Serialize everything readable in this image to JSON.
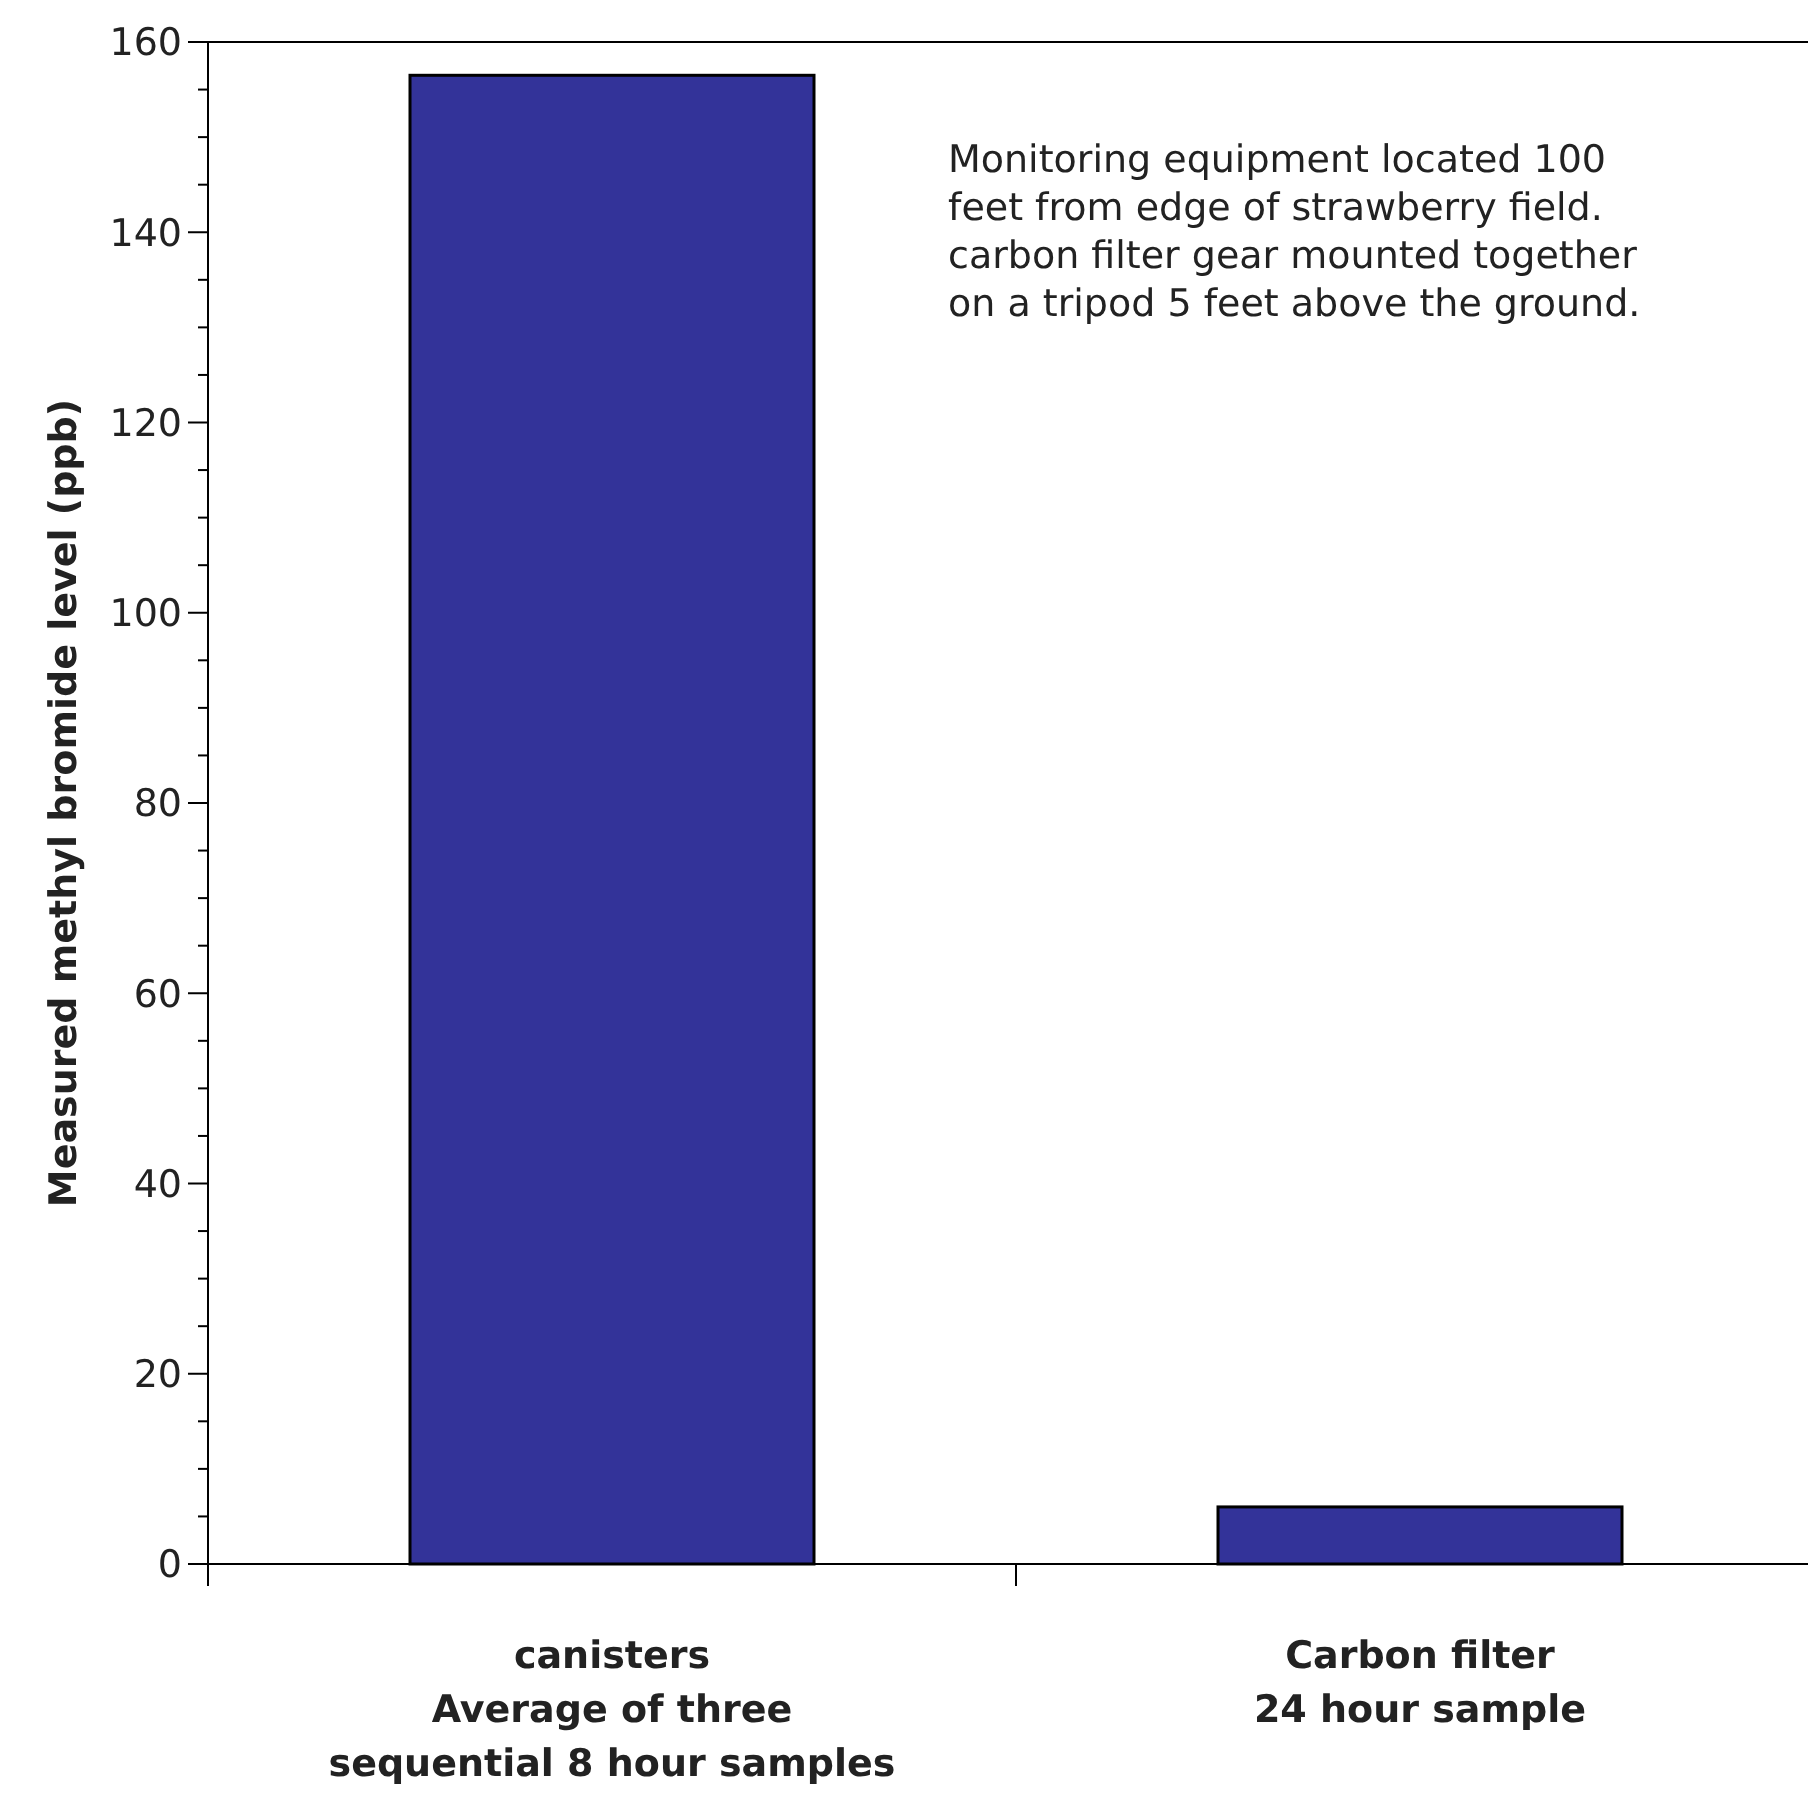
{
  "chart_data": {
    "type": "bar",
    "ylabel": "Measured methyl bromide level (ppb)",
    "categories": [
      "canisters\nAverage of three\nsequential 8 hour samples",
      "Carbon filter\n24 hour sample"
    ],
    "values": [
      156.5,
      6
    ],
    "color": "#333399",
    "ylim": [
      0,
      160
    ],
    "yticks": [
      0,
      20,
      40,
      60,
      80,
      100,
      120,
      140,
      160
    ],
    "grid": false,
    "annotations": [
      "Monitoring equipment located 100 feet from edge of strawberry field. carbon filter gear mounted together on a tripod 5 feet above the ground."
    ]
  }
}
